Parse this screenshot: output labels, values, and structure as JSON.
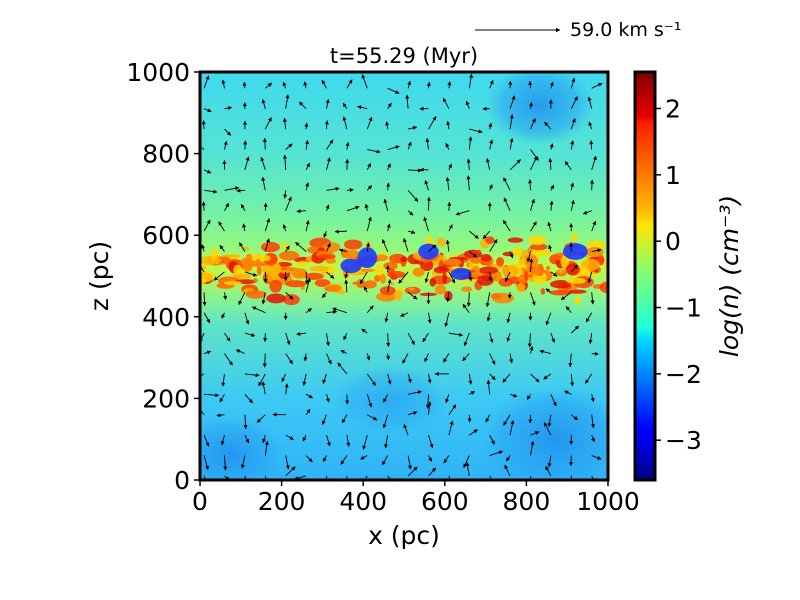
{
  "chart_data": {
    "type": "heatmap",
    "title": "t=55.29 (Myr)",
    "xlabel": "x (pc)",
    "ylabel": "z (pc)",
    "xlim": [
      0,
      1000
    ],
    "ylim": [
      0,
      1000
    ],
    "xticks": [
      0,
      200,
      400,
      600,
      800,
      1000
    ],
    "yticks": [
      0,
      200,
      400,
      600,
      800,
      1000
    ],
    "xtick_labels": [
      "0",
      "200",
      "400",
      "600",
      "800",
      "1000"
    ],
    "ytick_labels": [
      "0",
      "200",
      "400",
      "600",
      "800",
      "1000"
    ],
    "colorbar": {
      "label": "log(n) (cm⁻³)",
      "colormap": "jet",
      "range": [
        -3.6,
        2.55
      ],
      "ticks": [
        2,
        1,
        0,
        -1,
        -2,
        -3
      ],
      "tick_labels": [
        "2",
        "1",
        "0",
        "−1",
        "−2",
        "−3"
      ]
    },
    "quiver_key": {
      "label": "59.0 km s⁻¹",
      "speed_km_s": 59.0
    },
    "density_features": [
      {
        "name": "dense-midplane-layer",
        "z_range_pc": [
          440,
          600
        ],
        "log_n_range": [
          0.5,
          2.5
        ]
      },
      {
        "name": "upper-halo",
        "z_range_pc": [
          600,
          1000
        ],
        "log_n_approx": -1.2
      },
      {
        "name": "lower-halo",
        "z_range_pc": [
          0,
          440
        ],
        "log_n_approx": -1.6
      },
      {
        "name": "low-density-bubble-bottom-left",
        "center_pc": [
          60,
          80
        ],
        "log_n_approx": -2.2
      },
      {
        "name": "low-density-bubble-bottom-right",
        "center_pc": [
          820,
          110
        ],
        "log_n_approx": -2.0
      },
      {
        "name": "low-density-bubble-top-right",
        "center_pc": [
          800,
          920
        ],
        "log_n_approx": -1.9
      }
    ]
  }
}
